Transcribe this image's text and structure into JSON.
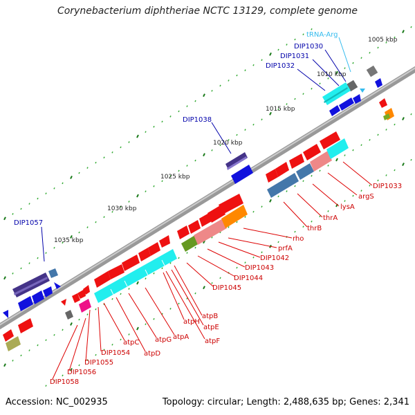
{
  "title": "Corynebacterium diphtheriae NCTC 13129, complete genome",
  "footer": {
    "accession": "Accession: NC_002935",
    "summary": "Topology: circular; Length: 2,488,635 bp; Genes: 2,341"
  },
  "scale_labels": [
    "1005 kbp",
    "1010 kbp",
    "1015 kbp",
    "1020 kbp",
    "1025 kbp",
    "1030 kbp",
    "1035 kbp"
  ],
  "labels_top": [
    "tRNA-Arg",
    "DIP1030",
    "DIP1031",
    "DIP1032",
    "DIP1038",
    "DIP1057"
  ],
  "labels_bottom": [
    "DIP1033",
    "argS",
    "lysA",
    "thrA",
    "thrB",
    "rho",
    "prfA",
    "DIP1042",
    "DIP1043",
    "DIP1044",
    "DIP1045",
    "atpB",
    "atpE",
    "atpF",
    "atpH",
    "atpA",
    "atpG",
    "atpD",
    "atpC",
    "DIP1054",
    "DIP1055",
    "DIP1056",
    "DIP1058"
  ],
  "colors": {
    "forward_gene": "#ee1111",
    "reverse_gene": "#1111dd",
    "trna": "#33bbee",
    "feature_cyan": "#22eeee",
    "feature_steel": "#4477aa",
    "feature_purple": "#443388",
    "backbone": "#808080",
    "ticks": "#228822"
  }
}
